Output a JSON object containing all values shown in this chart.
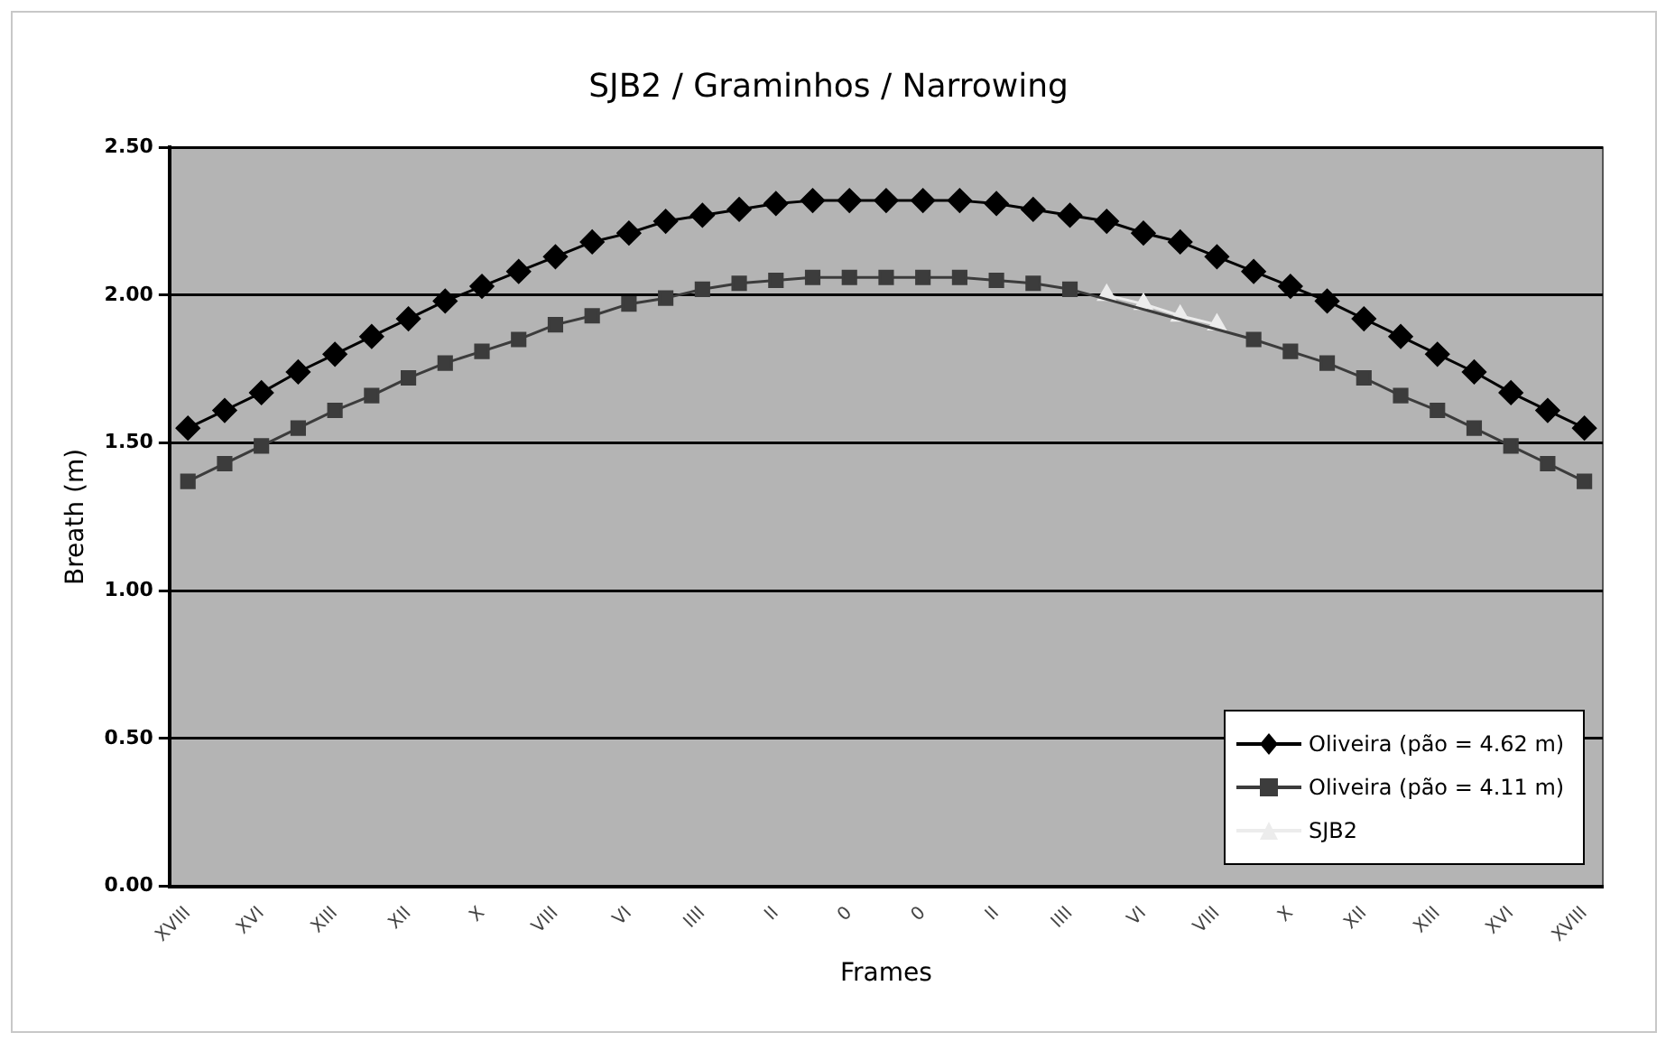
{
  "chart_data": {
    "type": "line",
    "title": "SJB2 / Graminhos / Narrowing",
    "xlabel": "Frames",
    "ylabel": "Breath (m)",
    "categories": [
      "XVIII",
      null,
      "XVI",
      null,
      "XIII",
      null,
      "XII",
      null,
      "X",
      null,
      "VIII",
      null,
      "VI",
      null,
      "IIII",
      null,
      "II",
      null,
      "0",
      null,
      "0",
      null,
      "II",
      null,
      "IIII",
      null,
      "VI",
      null,
      "VIII",
      null,
      "X",
      null,
      "XII",
      null,
      "XIII",
      null,
      "XVI",
      null,
      "XVIII"
    ],
    "ylim": [
      0,
      2.5
    ],
    "yticks": [
      {
        "value": 0,
        "label": "0.00"
      },
      {
        "value": 0.5,
        "label": "0.50"
      },
      {
        "value": 1,
        "label": "1.00"
      },
      {
        "value": 1.5,
        "label": "1.50"
      },
      {
        "value": 2,
        "label": "2.00"
      },
      {
        "value": 2.5,
        "label": "2.50"
      }
    ],
    "grid": "y",
    "legend": "bottom right",
    "line_style": "solid",
    "series": [
      {
        "name": "Oliveira (pão = 4.62 m)",
        "color": "#000000",
        "marker": "diamond",
        "values": [
          1.55,
          1.61,
          1.67,
          1.74,
          1.8,
          1.86,
          1.92,
          1.98,
          2.03,
          2.08,
          2.13,
          2.18,
          2.21,
          2.25,
          2.27,
          2.29,
          2.31,
          2.32,
          2.32,
          2.32,
          2.32,
          2.32,
          2.31,
          2.29,
          2.27,
          2.25,
          2.21,
          2.18,
          2.13,
          2.08,
          2.03,
          1.98,
          1.92,
          1.86,
          1.8,
          1.74,
          1.67,
          1.61,
          1.55
        ]
      },
      {
        "name": "Oliveira (pão = 4.11 m)",
        "color": "#3c3c3c",
        "marker": "square",
        "values": [
          1.37,
          1.43,
          1.49,
          1.55,
          1.61,
          1.66,
          1.72,
          1.77,
          1.81,
          1.85,
          1.9,
          1.93,
          1.97,
          1.99,
          2.02,
          2.04,
          2.05,
          2.06,
          2.06,
          2.06,
          2.06,
          2.06,
          2.05,
          2.04,
          2.02,
          null,
          null,
          null,
          null,
          1.85,
          1.81,
          1.77,
          1.72,
          1.66,
          1.61,
          1.55,
          1.49,
          1.43,
          1.37
        ]
      },
      {
        "name": "SJB2",
        "color": "#ececec",
        "marker": "triangle",
        "values": [
          null,
          null,
          null,
          null,
          null,
          null,
          null,
          null,
          null,
          null,
          null,
          null,
          null,
          null,
          null,
          null,
          null,
          null,
          null,
          null,
          null,
          null,
          null,
          null,
          null,
          2.0,
          1.97,
          1.93,
          1.9,
          null,
          null,
          null,
          null,
          null,
          null,
          null,
          null,
          null,
          null
        ]
      }
    ]
  }
}
